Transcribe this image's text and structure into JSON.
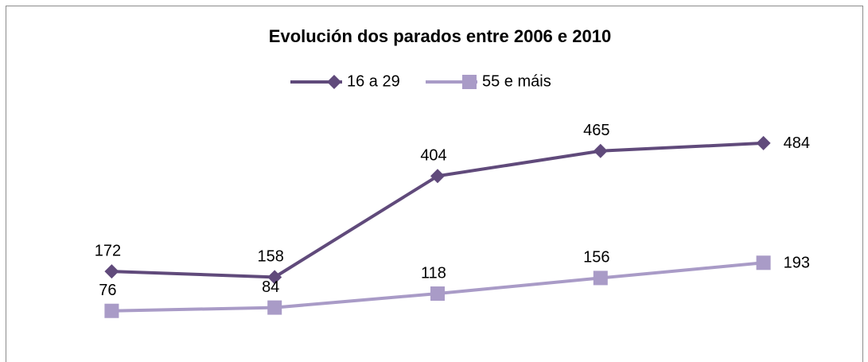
{
  "chart_data": {
    "type": "line",
    "title": "Evolución dos parados entre 2006 e 2010",
    "categories": [
      null,
      null,
      null,
      null,
      null
    ],
    "series": [
      {
        "name": "16 a 29",
        "color": "#604a7b",
        "marker": "diamond",
        "values": [
          172,
          158,
          404,
          465,
          484
        ]
      },
      {
        "name": "55 e máis",
        "color": "#a99bc7",
        "marker": "square",
        "values": [
          76,
          84,
          118,
          156,
          193
        ]
      }
    ],
    "ylim": [
      0,
      600
    ],
    "grid": false,
    "legend": "top"
  }
}
